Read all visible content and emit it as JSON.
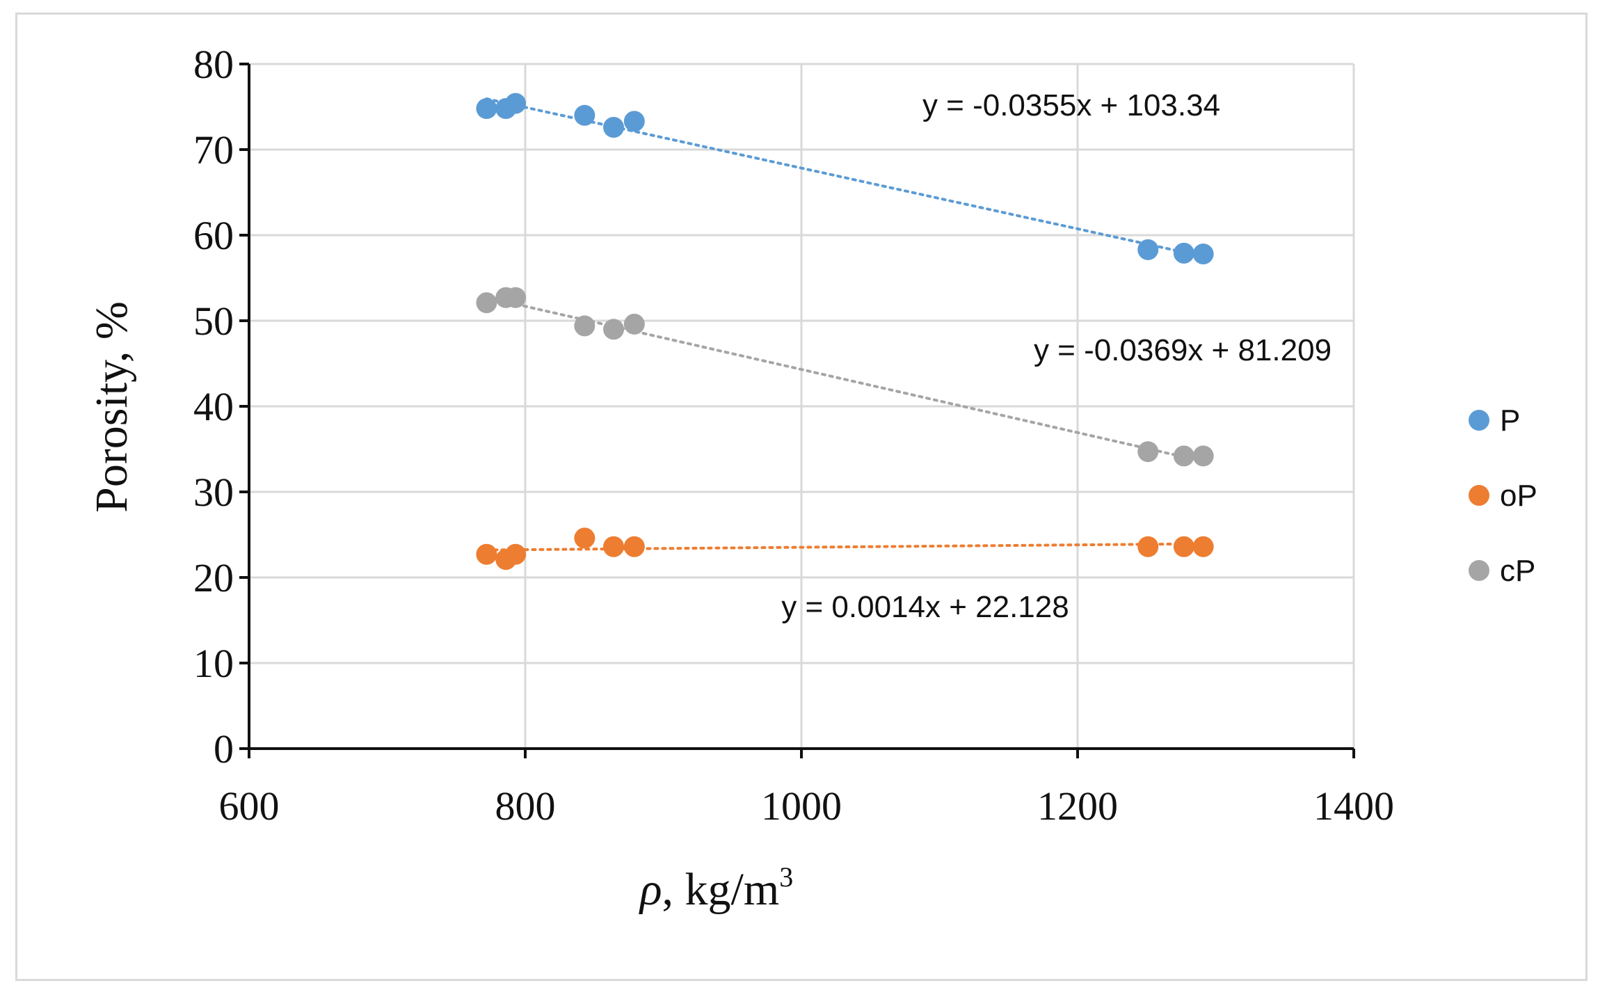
{
  "chart_data": {
    "type": "scatter",
    "title": "",
    "xlabel": "ρ, kg/m³",
    "xlabel_symbol": "ρ",
    "xlabel_text": ", kg/m",
    "xlabel_sup": "3",
    "ylabel": "Porosity, %",
    "xlim": [
      600,
      1400
    ],
    "ylim": [
      0,
      80
    ],
    "xticks": [
      600,
      800,
      1000,
      1200,
      1400
    ],
    "yticks": [
      0,
      10,
      20,
      30,
      40,
      50,
      60,
      70,
      80
    ],
    "grid": true,
    "legend_position": "right",
    "series": [
      {
        "name": "P",
        "color": "#5b9bd5",
        "x": [
          772,
          786,
          793,
          843,
          864,
          879,
          1251,
          1277,
          1291
        ],
        "y": [
          74.8,
          74.8,
          75.4,
          74.0,
          72.6,
          73.3,
          58.3,
          57.9,
          57.8
        ],
        "trendline": {
          "slope": -0.0355,
          "intercept": 103.34,
          "label": "y = -0.0355x + 103.34"
        }
      },
      {
        "name": "oP",
        "color": "#ed7d31",
        "x": [
          772,
          786,
          793,
          843,
          864,
          879,
          1251,
          1277,
          1291
        ],
        "y": [
          22.7,
          22.1,
          22.7,
          24.6,
          23.6,
          23.6,
          23.6,
          23.6,
          23.6
        ],
        "trendline": {
          "slope": 0.0014,
          "intercept": 22.128,
          "label": "y = 0.0014x + 22.128"
        }
      },
      {
        "name": "cP",
        "color": "#a5a5a5",
        "x": [
          772,
          786,
          793,
          843,
          864,
          879,
          1251,
          1277,
          1291
        ],
        "y": [
          52.1,
          52.7,
          52.7,
          49.4,
          49.0,
          49.6,
          34.7,
          34.2,
          34.2
        ],
        "trendline": {
          "slope": -0.0369,
          "intercept": 81.209,
          "label": "y = -0.0369x + 81.209"
        }
      }
    ]
  }
}
